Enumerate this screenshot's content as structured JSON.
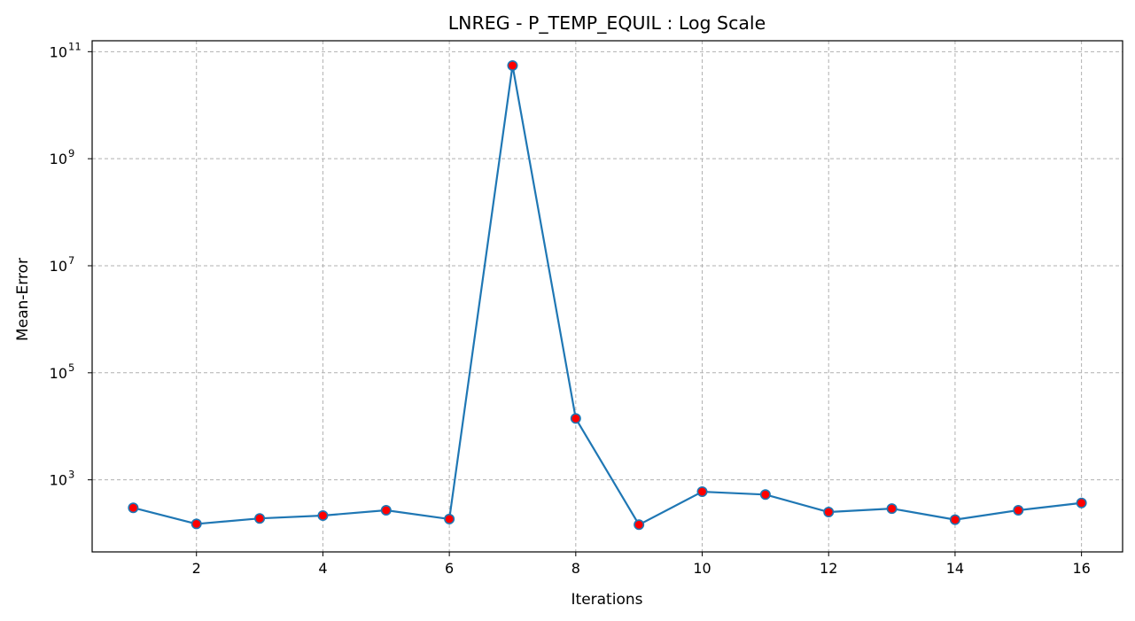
{
  "chart_data": {
    "type": "line",
    "title": "LNREG - P_TEMP_EQUIL : Log Scale",
    "xlabel": "Iterations",
    "ylabel": "Mean-Error",
    "yscale": "log",
    "grid": true,
    "xlim": [
      0.35,
      16.65
    ],
    "ylim": [
      45,
      160000000000
    ],
    "xticks": [
      2,
      4,
      6,
      8,
      10,
      12,
      14,
      16
    ],
    "yticks": [
      {
        "value": 1000,
        "base": "10",
        "exp": "3"
      },
      {
        "value": 100000,
        "base": "10",
        "exp": "5"
      },
      {
        "value": 10000000,
        "base": "10",
        "exp": "7"
      },
      {
        "value": 1000000000,
        "base": "10",
        "exp": "9"
      },
      {
        "value": 100000000000,
        "base": "10",
        "exp": "11"
      }
    ],
    "series": [
      {
        "x": [
          1,
          2,
          3,
          4,
          5,
          6,
          7,
          8,
          9,
          10,
          11,
          12,
          13,
          14,
          15,
          16
        ],
        "values": [
          300,
          150,
          190,
          215,
          270,
          185,
          55000000000,
          14000,
          145,
          600,
          530,
          250,
          290,
          180,
          270,
          370
        ],
        "line_color": "#1f77b4",
        "marker_face": "#ff0000",
        "marker_edge": "#1f77b4"
      }
    ]
  }
}
